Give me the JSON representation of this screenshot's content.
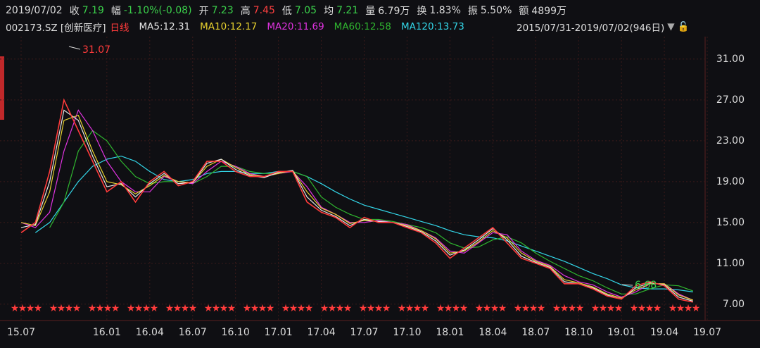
{
  "header": {
    "date": "2019/07/02",
    "items": [
      {
        "label": "收",
        "value": "7.19",
        "color": "#3bd14b"
      },
      {
        "label": "幅",
        "value": "-1.10%(-0.08)",
        "color": "#3bd14b"
      },
      {
        "label": "开",
        "value": "7.23",
        "color": "#3bd14b"
      },
      {
        "label": "高",
        "value": "7.45",
        "color": "#ff4040"
      },
      {
        "label": "低",
        "value": "7.05",
        "color": "#3bd14b"
      },
      {
        "label": "均",
        "value": "7.21",
        "color": "#3bd14b"
      },
      {
        "label": "量",
        "value": "6.79万",
        "color": "#dddddd"
      },
      {
        "label": "换",
        "value": "1.83%",
        "color": "#dddddd"
      },
      {
        "label": "振",
        "value": "5.50%",
        "color": "#dddddd"
      },
      {
        "label": "额",
        "value": "4899万",
        "color": "#dddddd"
      }
    ]
  },
  "chart_data": {
    "type": "line",
    "stock": "002173.SZ [创新医疗]",
    "period": "日线",
    "range": "2015/07/31-2019/07/02(946日)",
    "annotations": [
      "31.07",
      "6.68"
    ],
    "categories": [
      "15.07",
      null,
      null,
      null,
      null,
      null,
      "16.01",
      null,
      null,
      "16.04",
      null,
      null,
      "16.07",
      null,
      null,
      "16.10",
      null,
      null,
      "17.01",
      null,
      null,
      "17.04",
      null,
      null,
      "17.07",
      null,
      null,
      "17.10",
      null,
      null,
      "18.01",
      null,
      null,
      "18.04",
      null,
      null,
      "18.07",
      null,
      null,
      "18.10",
      null,
      null,
      "19.01",
      null,
      null,
      "19.04",
      null,
      null,
      "19.07"
    ],
    "ylim": [
      5.4,
      33.2
    ],
    "yticks": [
      {
        "value": 31,
        "label": "31.00"
      },
      {
        "value": 27,
        "label": "27.00"
      },
      {
        "value": 23,
        "label": "23.00"
      },
      {
        "value": 19,
        "label": "19.00"
      },
      {
        "value": 15,
        "label": "15.00"
      },
      {
        "value": 11,
        "label": "11.00"
      },
      {
        "value": 7,
        "label": "7.00"
      }
    ],
    "grid": true,
    "series": [
      {
        "name": "MA120:13.73",
        "color": "#33d6e8",
        "values": [
          null,
          14,
          15,
          17,
          19,
          20.5,
          21.2,
          21.5,
          21,
          20,
          19.2,
          19,
          19.2,
          19.8,
          20,
          20,
          19.8,
          19.8,
          20,
          20,
          19.5,
          18.8,
          18,
          17.3,
          16.7,
          16.3,
          15.9,
          15.5,
          15.1,
          14.7,
          14.2,
          13.8,
          13.6,
          13.5,
          13.2,
          12.7,
          12.2,
          11.7,
          11.2,
          10.6,
          10,
          9.5,
          8.9,
          8.6,
          8.5,
          8.5,
          8.4,
          8.2,
          null
        ]
      },
      {
        "name": "MA60:12.58",
        "color": "#2fb52f",
        "values": [
          null,
          null,
          14.5,
          17,
          22,
          24,
          23,
          21,
          19.5,
          18.8,
          19,
          19,
          18.8,
          19.5,
          20.5,
          20.5,
          20,
          19.8,
          19.8,
          20,
          19.5,
          17.5,
          16.5,
          15.8,
          15.3,
          15.3,
          15.1,
          14.8,
          14.5,
          14,
          13,
          12.5,
          12.6,
          13.3,
          13.6,
          13,
          12,
          11.2,
          10.5,
          9.8,
          9.3,
          8.6,
          8,
          8,
          8.5,
          8.9,
          8.8,
          8.3,
          null
        ]
      },
      {
        "name": "MA20:11.69",
        "color": "#e033e0",
        "values": [
          15,
          14.5,
          16,
          22,
          26,
          24,
          21,
          19,
          18,
          18,
          19.5,
          19,
          18.8,
          20,
          21,
          20.5,
          19.8,
          19.5,
          19.8,
          20,
          18.5,
          16.5,
          15.8,
          15,
          15,
          15.2,
          15,
          14.8,
          14.2,
          13.5,
          12.2,
          12,
          13,
          14,
          13.8,
          12.2,
          11.3,
          10.8,
          9.8,
          9.2,
          8.9,
          8.2,
          7.7,
          8.2,
          9,
          9,
          8,
          7.4,
          null
        ]
      },
      {
        "name": "MA10:12.17",
        "color": "#e8d22e",
        "values": [
          15,
          14.7,
          18,
          25,
          25.5,
          22,
          19,
          18.7,
          17.8,
          18.6,
          19.6,
          19,
          18.9,
          20.5,
          21.2,
          20.4,
          19.7,
          19.5,
          19.8,
          20.1,
          18,
          16.4,
          15.8,
          14.9,
          15.2,
          15.1,
          15,
          14.7,
          14.2,
          13.4,
          12,
          12.2,
          13.1,
          14.2,
          13.5,
          12,
          11.2,
          10.7,
          9.4,
          9.1,
          8.7,
          8,
          7.6,
          8.4,
          9,
          9,
          7.9,
          7.4,
          null
        ]
      },
      {
        "name": "MA5:12.31",
        "color": "#e6e6e6",
        "values": [
          14.5,
          14.8,
          19,
          26,
          25,
          21.5,
          18.5,
          18.8,
          17.5,
          18.8,
          19.8,
          18.8,
          18.9,
          20.8,
          21.2,
          20.2,
          19.6,
          19.4,
          19.9,
          20.1,
          17.5,
          16.2,
          15.6,
          14.7,
          15.3,
          15.1,
          15,
          14.6,
          14.1,
          13.2,
          11.8,
          12.3,
          13.3,
          14.4,
          13.3,
          11.7,
          11.1,
          10.6,
          9.2,
          9,
          8.6,
          7.9,
          7.5,
          8.6,
          9.1,
          8.9,
          7.7,
          7.3,
          null
        ]
      },
      {
        "name": "日线",
        "color": "#ff3b3b",
        "values": [
          14,
          15,
          20,
          27,
          24,
          21,
          18,
          19,
          17,
          19,
          20,
          18.6,
          19,
          21,
          21,
          20,
          19.5,
          19.5,
          20,
          20,
          17,
          16,
          15.5,
          14.5,
          15.5,
          15,
          15,
          14.5,
          14,
          13,
          11.5,
          12.5,
          13.5,
          14.5,
          13,
          11.5,
          11,
          10.5,
          9,
          9,
          8.5,
          7.8,
          7.5,
          8.8,
          9.2,
          8.8,
          7.5,
          7.2,
          null
        ]
      }
    ]
  }
}
